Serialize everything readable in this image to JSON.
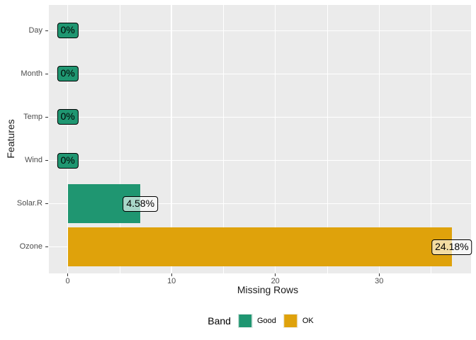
{
  "chart_data": {
    "type": "bar",
    "orientation": "horizontal",
    "xlabel": "Missing Rows",
    "ylabel": "Features",
    "categories_top_to_bottom": [
      "Day",
      "Month",
      "Temp",
      "Wind",
      "Solar.R",
      "Ozone"
    ],
    "series": [
      {
        "feature": "Day",
        "missing_rows": 0,
        "pct_label": "0%",
        "band": "Good"
      },
      {
        "feature": "Month",
        "missing_rows": 0,
        "pct_label": "0%",
        "band": "Good"
      },
      {
        "feature": "Temp",
        "missing_rows": 0,
        "pct_label": "0%",
        "band": "Good"
      },
      {
        "feature": "Wind",
        "missing_rows": 0,
        "pct_label": "0%",
        "band": "Good"
      },
      {
        "feature": "Solar.R",
        "missing_rows": 7,
        "pct_label": "4.58%",
        "band": "Good"
      },
      {
        "feature": "Ozone",
        "missing_rows": 37,
        "pct_label": "24.18%",
        "band": "OK"
      }
    ],
    "x_axis": {
      "range": [
        -1.85,
        38.85
      ],
      "major_ticks": [
        0,
        10,
        20,
        30
      ],
      "minor_ticks": [
        5,
        15,
        25,
        35
      ],
      "tick_labels": [
        "0",
        "10",
        "20",
        "30"
      ]
    },
    "legend": {
      "title": "Band",
      "position": "bottom",
      "entries": [
        {
          "label": "Good",
          "color": "#1f9671"
        },
        {
          "label": "OK",
          "color": "#dfa20b"
        }
      ]
    },
    "colors": {
      "Good": "#1f9671",
      "OK": "#dfa20b",
      "panel_bg": "#ebebeb",
      "grid": "#ffffff",
      "axis_text": "#4d4d4d",
      "label_border": "#000000"
    }
  }
}
